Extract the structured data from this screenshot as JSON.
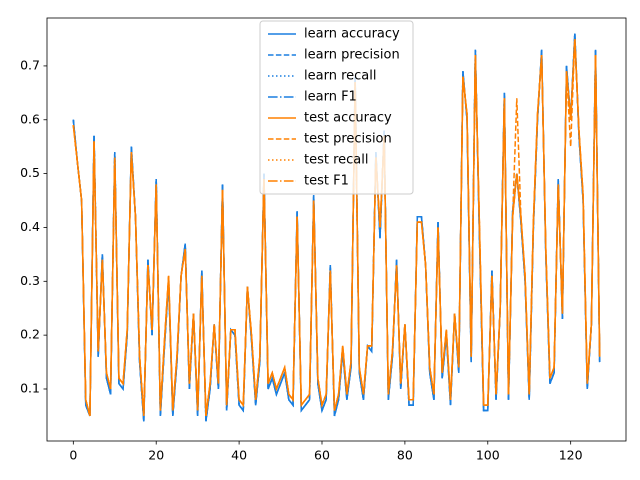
{
  "chart_data": {
    "type": "line",
    "x": [
      0,
      1,
      2,
      3,
      4,
      5,
      6,
      7,
      8,
      9,
      10,
      11,
      12,
      13,
      14,
      15,
      16,
      17,
      18,
      19,
      20,
      21,
      22,
      23,
      24,
      25,
      26,
      27,
      28,
      29,
      30,
      31,
      32,
      33,
      34,
      35,
      36,
      37,
      38,
      39,
      40,
      41,
      42,
      43,
      44,
      45,
      46,
      47,
      48,
      49,
      50,
      51,
      52,
      53,
      54,
      55,
      56,
      57,
      58,
      59,
      60,
      61,
      62,
      63,
      64,
      65,
      66,
      67,
      68,
      69,
      70,
      71,
      72,
      73,
      74,
      75,
      76,
      77,
      78,
      79,
      80,
      81,
      82,
      83,
      84,
      85,
      86,
      87,
      88,
      89,
      90,
      91,
      92,
      93,
      94,
      95,
      96,
      97,
      98,
      99,
      100,
      101,
      102,
      103,
      104,
      105,
      106,
      107,
      108,
      109,
      110,
      111,
      112,
      113,
      114,
      115,
      116,
      117,
      118,
      119,
      120,
      121,
      122,
      123,
      124,
      125,
      126,
      127
    ],
    "series": [
      {
        "name": "learn accuracy",
        "color": "#1a7fe0",
        "dash": "solid",
        "values": [
          0.6,
          0.52,
          0.45,
          0.07,
          0.05,
          0.57,
          0.16,
          0.35,
          0.12,
          0.09,
          0.54,
          0.11,
          0.1,
          0.2,
          0.55,
          0.42,
          0.15,
          0.04,
          0.34,
          0.2,
          0.49,
          0.05,
          0.18,
          0.3,
          0.05,
          0.15,
          0.31,
          0.37,
          0.1,
          0.24,
          0.05,
          0.32,
          0.04,
          0.1,
          0.22,
          0.1,
          0.48,
          0.06,
          0.21,
          0.2,
          0.07,
          0.06,
          0.29,
          0.19,
          0.07,
          0.15,
          0.5,
          0.1,
          0.12,
          0.09,
          0.11,
          0.13,
          0.08,
          0.07,
          0.43,
          0.06,
          0.07,
          0.08,
          0.46,
          0.11,
          0.06,
          0.08,
          0.33,
          0.05,
          0.08,
          0.17,
          0.08,
          0.14,
          0.68,
          0.13,
          0.08,
          0.18,
          0.17,
          0.54,
          0.38,
          0.58,
          0.08,
          0.16,
          0.34,
          0.1,
          0.22,
          0.07,
          0.07,
          0.42,
          0.42,
          0.33,
          0.13,
          0.08,
          0.41,
          0.12,
          0.2,
          0.07,
          0.24,
          0.13,
          0.69,
          0.6,
          0.15,
          0.73,
          0.38,
          0.06,
          0.06,
          0.32,
          0.08,
          0.25,
          0.65,
          0.08,
          0.43,
          0.5,
          0.41,
          0.3,
          0.08,
          0.4,
          0.6,
          0.73,
          0.35,
          0.11,
          0.13,
          0.49,
          0.23,
          0.7,
          0.6,
          0.76,
          0.57,
          0.45,
          0.1,
          0.22,
          0.73,
          0.15
        ]
      },
      {
        "name": "learn precision",
        "color": "#1a7fe0",
        "dash": "dashed",
        "values": [
          0.6,
          0.52,
          0.45,
          0.07,
          0.05,
          0.57,
          0.16,
          0.35,
          0.12,
          0.09,
          0.54,
          0.11,
          0.1,
          0.2,
          0.55,
          0.42,
          0.15,
          0.04,
          0.34,
          0.2,
          0.49,
          0.05,
          0.18,
          0.3,
          0.05,
          0.15,
          0.31,
          0.37,
          0.1,
          0.24,
          0.05,
          0.32,
          0.04,
          0.1,
          0.22,
          0.1,
          0.48,
          0.06,
          0.21,
          0.2,
          0.07,
          0.06,
          0.29,
          0.19,
          0.07,
          0.15,
          0.5,
          0.1,
          0.12,
          0.09,
          0.11,
          0.13,
          0.08,
          0.07,
          0.43,
          0.06,
          0.07,
          0.08,
          0.46,
          0.11,
          0.06,
          0.08,
          0.33,
          0.05,
          0.08,
          0.17,
          0.08,
          0.14,
          0.68,
          0.13,
          0.08,
          0.18,
          0.17,
          0.54,
          0.38,
          0.58,
          0.08,
          0.16,
          0.34,
          0.1,
          0.22,
          0.07,
          0.07,
          0.42,
          0.42,
          0.33,
          0.13,
          0.08,
          0.41,
          0.12,
          0.2,
          0.07,
          0.24,
          0.13,
          0.69,
          0.6,
          0.15,
          0.73,
          0.38,
          0.06,
          0.06,
          0.32,
          0.08,
          0.25,
          0.65,
          0.08,
          0.43,
          0.5,
          0.41,
          0.3,
          0.08,
          0.4,
          0.6,
          0.73,
          0.35,
          0.11,
          0.13,
          0.49,
          0.23,
          0.7,
          0.6,
          0.76,
          0.57,
          0.45,
          0.1,
          0.22,
          0.73,
          0.15
        ]
      },
      {
        "name": "learn recall",
        "color": "#1a7fe0",
        "dash": "dotted",
        "values": [
          0.6,
          0.52,
          0.45,
          0.07,
          0.05,
          0.57,
          0.16,
          0.35,
          0.12,
          0.09,
          0.54,
          0.11,
          0.1,
          0.2,
          0.55,
          0.42,
          0.15,
          0.04,
          0.34,
          0.2,
          0.49,
          0.05,
          0.18,
          0.3,
          0.05,
          0.15,
          0.31,
          0.37,
          0.1,
          0.24,
          0.05,
          0.32,
          0.04,
          0.1,
          0.22,
          0.1,
          0.48,
          0.06,
          0.21,
          0.2,
          0.07,
          0.06,
          0.29,
          0.19,
          0.07,
          0.15,
          0.5,
          0.1,
          0.12,
          0.09,
          0.11,
          0.13,
          0.08,
          0.07,
          0.43,
          0.06,
          0.07,
          0.08,
          0.46,
          0.11,
          0.06,
          0.08,
          0.33,
          0.05,
          0.08,
          0.17,
          0.08,
          0.14,
          0.68,
          0.13,
          0.08,
          0.18,
          0.17,
          0.54,
          0.38,
          0.58,
          0.08,
          0.16,
          0.34,
          0.1,
          0.22,
          0.07,
          0.07,
          0.42,
          0.42,
          0.33,
          0.13,
          0.08,
          0.41,
          0.12,
          0.2,
          0.07,
          0.24,
          0.13,
          0.69,
          0.6,
          0.15,
          0.73,
          0.38,
          0.06,
          0.06,
          0.32,
          0.08,
          0.25,
          0.65,
          0.08,
          0.43,
          0.5,
          0.41,
          0.3,
          0.08,
          0.4,
          0.6,
          0.73,
          0.35,
          0.11,
          0.13,
          0.49,
          0.23,
          0.7,
          0.6,
          0.76,
          0.57,
          0.45,
          0.1,
          0.22,
          0.73,
          0.15
        ]
      },
      {
        "name": "learn F1",
        "color": "#1a7fe0",
        "dash": "dashdot",
        "values": [
          0.6,
          0.52,
          0.45,
          0.07,
          0.05,
          0.57,
          0.16,
          0.35,
          0.12,
          0.09,
          0.54,
          0.11,
          0.1,
          0.2,
          0.55,
          0.42,
          0.15,
          0.04,
          0.34,
          0.2,
          0.49,
          0.05,
          0.18,
          0.3,
          0.05,
          0.15,
          0.31,
          0.37,
          0.1,
          0.24,
          0.05,
          0.32,
          0.04,
          0.1,
          0.22,
          0.1,
          0.48,
          0.06,
          0.21,
          0.2,
          0.07,
          0.06,
          0.29,
          0.19,
          0.07,
          0.15,
          0.5,
          0.1,
          0.12,
          0.09,
          0.11,
          0.13,
          0.08,
          0.07,
          0.43,
          0.06,
          0.07,
          0.08,
          0.46,
          0.11,
          0.06,
          0.08,
          0.33,
          0.05,
          0.08,
          0.17,
          0.08,
          0.14,
          0.68,
          0.13,
          0.08,
          0.18,
          0.17,
          0.54,
          0.38,
          0.58,
          0.08,
          0.16,
          0.34,
          0.1,
          0.22,
          0.07,
          0.07,
          0.42,
          0.42,
          0.33,
          0.13,
          0.08,
          0.41,
          0.12,
          0.2,
          0.07,
          0.24,
          0.13,
          0.69,
          0.6,
          0.15,
          0.73,
          0.38,
          0.06,
          0.06,
          0.32,
          0.08,
          0.25,
          0.65,
          0.08,
          0.43,
          0.5,
          0.41,
          0.3,
          0.08,
          0.4,
          0.6,
          0.73,
          0.35,
          0.11,
          0.13,
          0.49,
          0.23,
          0.7,
          0.6,
          0.76,
          0.57,
          0.45,
          0.1,
          0.22,
          0.73,
          0.15
        ]
      },
      {
        "name": "test accuracy",
        "color": "#ff8000",
        "dash": "solid",
        "values": [
          0.59,
          0.52,
          0.45,
          0.08,
          0.05,
          0.56,
          0.17,
          0.34,
          0.13,
          0.1,
          0.53,
          0.12,
          0.11,
          0.21,
          0.54,
          0.42,
          0.16,
          0.05,
          0.33,
          0.21,
          0.48,
          0.06,
          0.19,
          0.31,
          0.06,
          0.16,
          0.31,
          0.36,
          0.11,
          0.24,
          0.06,
          0.31,
          0.05,
          0.11,
          0.22,
          0.11,
          0.47,
          0.07,
          0.21,
          0.21,
          0.08,
          0.07,
          0.29,
          0.2,
          0.08,
          0.16,
          0.49,
          0.11,
          0.13,
          0.1,
          0.12,
          0.14,
          0.09,
          0.08,
          0.42,
          0.07,
          0.08,
          0.09,
          0.45,
          0.12,
          0.07,
          0.09,
          0.32,
          0.06,
          0.09,
          0.18,
          0.09,
          0.15,
          0.67,
          0.14,
          0.09,
          0.18,
          0.18,
          0.53,
          0.4,
          0.57,
          0.09,
          0.17,
          0.33,
          0.11,
          0.22,
          0.08,
          0.08,
          0.41,
          0.41,
          0.33,
          0.14,
          0.09,
          0.4,
          0.13,
          0.21,
          0.08,
          0.24,
          0.14,
          0.68,
          0.61,
          0.16,
          0.72,
          0.4,
          0.07,
          0.07,
          0.31,
          0.09,
          0.25,
          0.64,
          0.09,
          0.42,
          0.5,
          0.42,
          0.31,
          0.09,
          0.41,
          0.61,
          0.72,
          0.36,
          0.12,
          0.14,
          0.48,
          0.24,
          0.69,
          0.6,
          0.75,
          0.58,
          0.46,
          0.11,
          0.22,
          0.72,
          0.16
        ]
      },
      {
        "name": "test precision",
        "color": "#ff8000",
        "dash": "dashed",
        "values": [
          0.59,
          0.52,
          0.45,
          0.08,
          0.05,
          0.56,
          0.17,
          0.34,
          0.13,
          0.1,
          0.53,
          0.12,
          0.11,
          0.21,
          0.54,
          0.42,
          0.16,
          0.05,
          0.33,
          0.21,
          0.48,
          0.06,
          0.19,
          0.31,
          0.06,
          0.16,
          0.31,
          0.36,
          0.11,
          0.24,
          0.06,
          0.31,
          0.05,
          0.11,
          0.22,
          0.11,
          0.47,
          0.07,
          0.21,
          0.21,
          0.08,
          0.07,
          0.29,
          0.2,
          0.08,
          0.16,
          0.49,
          0.11,
          0.13,
          0.1,
          0.12,
          0.14,
          0.09,
          0.08,
          0.42,
          0.07,
          0.08,
          0.09,
          0.45,
          0.12,
          0.07,
          0.09,
          0.32,
          0.06,
          0.09,
          0.18,
          0.09,
          0.15,
          0.67,
          0.14,
          0.09,
          0.18,
          0.18,
          0.53,
          0.4,
          0.57,
          0.09,
          0.17,
          0.33,
          0.11,
          0.22,
          0.08,
          0.08,
          0.41,
          0.41,
          0.33,
          0.14,
          0.09,
          0.4,
          0.13,
          0.21,
          0.08,
          0.24,
          0.14,
          0.68,
          0.61,
          0.16,
          0.72,
          0.4,
          0.07,
          0.07,
          0.31,
          0.09,
          0.25,
          0.64,
          0.09,
          0.42,
          0.64,
          0.42,
          0.31,
          0.09,
          0.41,
          0.61,
          0.72,
          0.36,
          0.12,
          0.14,
          0.48,
          0.24,
          0.69,
          0.55,
          0.75,
          0.58,
          0.46,
          0.11,
          0.22,
          0.72,
          0.16
        ]
      },
      {
        "name": "test recall",
        "color": "#ff8000",
        "dash": "dotted",
        "values": [
          0.59,
          0.52,
          0.45,
          0.08,
          0.05,
          0.56,
          0.17,
          0.34,
          0.13,
          0.1,
          0.53,
          0.12,
          0.11,
          0.21,
          0.54,
          0.42,
          0.16,
          0.05,
          0.33,
          0.21,
          0.48,
          0.06,
          0.19,
          0.31,
          0.06,
          0.16,
          0.31,
          0.36,
          0.11,
          0.24,
          0.06,
          0.31,
          0.05,
          0.11,
          0.22,
          0.11,
          0.47,
          0.07,
          0.21,
          0.21,
          0.08,
          0.07,
          0.29,
          0.2,
          0.08,
          0.16,
          0.49,
          0.11,
          0.13,
          0.1,
          0.12,
          0.14,
          0.09,
          0.08,
          0.42,
          0.07,
          0.08,
          0.09,
          0.45,
          0.12,
          0.07,
          0.09,
          0.32,
          0.06,
          0.09,
          0.18,
          0.09,
          0.15,
          0.67,
          0.14,
          0.09,
          0.18,
          0.18,
          0.53,
          0.4,
          0.57,
          0.09,
          0.17,
          0.33,
          0.11,
          0.22,
          0.08,
          0.08,
          0.41,
          0.41,
          0.33,
          0.14,
          0.09,
          0.4,
          0.13,
          0.21,
          0.08,
          0.24,
          0.14,
          0.68,
          0.61,
          0.16,
          0.72,
          0.4,
          0.07,
          0.07,
          0.31,
          0.09,
          0.25,
          0.64,
          0.09,
          0.42,
          0.5,
          0.42,
          0.31,
          0.09,
          0.41,
          0.61,
          0.72,
          0.36,
          0.12,
          0.14,
          0.48,
          0.24,
          0.69,
          0.6,
          0.75,
          0.58,
          0.46,
          0.11,
          0.22,
          0.72,
          0.16
        ]
      },
      {
        "name": "test F1",
        "color": "#ff8000",
        "dash": "dashdot",
        "values": [
          0.59,
          0.52,
          0.45,
          0.08,
          0.05,
          0.56,
          0.17,
          0.34,
          0.13,
          0.1,
          0.53,
          0.12,
          0.11,
          0.21,
          0.54,
          0.42,
          0.16,
          0.05,
          0.33,
          0.21,
          0.48,
          0.06,
          0.19,
          0.31,
          0.06,
          0.16,
          0.31,
          0.36,
          0.11,
          0.24,
          0.06,
          0.31,
          0.05,
          0.11,
          0.22,
          0.11,
          0.47,
          0.07,
          0.21,
          0.21,
          0.08,
          0.07,
          0.29,
          0.2,
          0.08,
          0.16,
          0.49,
          0.11,
          0.13,
          0.1,
          0.12,
          0.14,
          0.09,
          0.08,
          0.42,
          0.07,
          0.08,
          0.09,
          0.45,
          0.12,
          0.07,
          0.09,
          0.32,
          0.06,
          0.09,
          0.18,
          0.09,
          0.15,
          0.67,
          0.14,
          0.09,
          0.18,
          0.18,
          0.53,
          0.4,
          0.57,
          0.09,
          0.17,
          0.33,
          0.11,
          0.22,
          0.08,
          0.08,
          0.41,
          0.41,
          0.33,
          0.14,
          0.09,
          0.4,
          0.13,
          0.21,
          0.08,
          0.24,
          0.14,
          0.68,
          0.61,
          0.16,
          0.72,
          0.4,
          0.07,
          0.07,
          0.31,
          0.09,
          0.25,
          0.64,
          0.09,
          0.42,
          0.5,
          0.42,
          0.31,
          0.09,
          0.41,
          0.61,
          0.72,
          0.36,
          0.12,
          0.14,
          0.48,
          0.24,
          0.69,
          0.6,
          0.75,
          0.58,
          0.46,
          0.11,
          0.22,
          0.72,
          0.16
        ]
      }
    ],
    "xlim": [
      -6.35,
      133.35
    ],
    "ylim": [
      0.0034,
      0.789
    ],
    "xticks": [
      0,
      20,
      40,
      60,
      80,
      100,
      120
    ],
    "yticks": [
      0.1,
      0.2,
      0.3,
      0.4,
      0.5,
      0.6,
      0.7
    ],
    "legend": "upper center"
  }
}
